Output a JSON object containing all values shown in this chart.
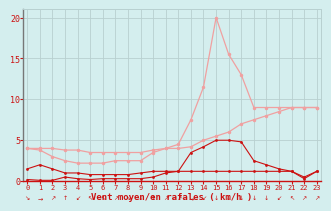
{
  "x": [
    0,
    1,
    2,
    3,
    4,
    5,
    6,
    7,
    8,
    9,
    10,
    11,
    12,
    13,
    14,
    15,
    16,
    17,
    18,
    19,
    20,
    21,
    22,
    23
  ],
  "line_flat_pink": [
    4.0,
    4.0,
    4.0,
    3.8,
    3.8,
    3.5,
    3.5,
    3.5,
    3.5,
    3.5,
    3.8,
    4.0,
    4.0,
    4.2,
    5.0,
    5.5,
    6.0,
    7.0,
    7.5,
    8.0,
    8.5,
    9.0,
    9.0,
    9.0
  ],
  "line_peak_pink": [
    4.0,
    3.8,
    3.0,
    2.5,
    2.2,
    2.2,
    2.2,
    2.5,
    2.5,
    2.5,
    3.5,
    4.0,
    4.5,
    7.5,
    11.5,
    20.0,
    15.5,
    13.0,
    9.0,
    9.0,
    9.0,
    9.0,
    9.0,
    9.0
  ],
  "line_dark_flat": [
    1.5,
    2.0,
    1.5,
    1.0,
    1.0,
    0.8,
    0.8,
    0.8,
    0.8,
    1.0,
    1.2,
    1.2,
    1.2,
    1.2,
    1.2,
    1.2,
    1.2,
    1.2,
    1.2,
    1.2,
    1.2,
    1.2,
    0.5,
    1.2
  ],
  "line_dark_peak": [
    0.2,
    0.1,
    0.1,
    0.5,
    0.3,
    0.2,
    0.3,
    0.3,
    0.3,
    0.3,
    0.5,
    1.0,
    1.2,
    3.5,
    4.2,
    5.0,
    5.0,
    4.8,
    2.5,
    2.0,
    1.5,
    1.2,
    0.3,
    1.2
  ],
  "bg_color": "#d4eeee",
  "grid_color": "#b8d0d0",
  "pink_color": "#f0a0a0",
  "dark_red_color": "#cc1111",
  "xlabel": "Vent moyen/en rafales ( km/h )",
  "xlabel_color": "#cc1111",
  "tick_color": "#cc1111",
  "ylim": [
    0,
    21
  ],
  "yticks": [
    0,
    5,
    10,
    15,
    20
  ],
  "xlim": [
    -0.3,
    23.3
  ],
  "wind_symbols": [
    "↘",
    "→",
    "↗",
    "↑",
    "↙",
    "↖",
    "↖",
    "↗",
    "↘",
    "↓",
    "↑",
    "↗",
    "↗",
    "→",
    "↙",
    "↓",
    "↓",
    "↓",
    "↓",
    "↓",
    "↙",
    "↖",
    "↗",
    "↗"
  ]
}
